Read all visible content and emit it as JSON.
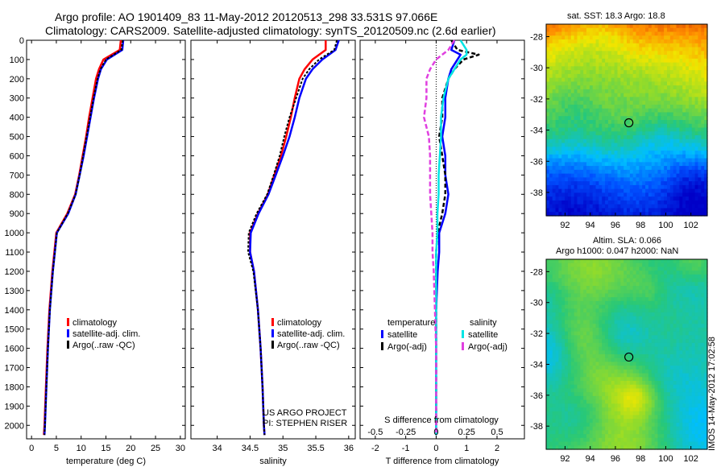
{
  "header": {
    "line1": "Argo profile: AO 1901409_83 11-May-2012 20120513_298 33.531S 97.066E",
    "line2": "Climatology: CARS2009. Satellite-adjusted climatology: synTS_20120509.nc (2.6d earlier)"
  },
  "project": {
    "line1": "US ARGO PROJECT",
    "line2": "PI: STEPHEN RISER"
  },
  "footer_stamp": "IMOS 14-May-2012 17:02:58",
  "colors": {
    "climatology": "#ff0000",
    "satellite": "#0000ff",
    "argo": "#000000",
    "sat_salinity": "#00e5e5",
    "argo_salinity": "#e040e0"
  },
  "chart_data": [
    {
      "type": "line",
      "id": "temperature",
      "xlabel": "temperature (deg C)",
      "xlim": [
        -1,
        31
      ],
      "xticks": [
        0,
        5,
        10,
        15,
        20,
        25,
        30
      ],
      "ylim": [
        2070,
        0
      ],
      "yticks": [
        0,
        100,
        200,
        300,
        400,
        500,
        600,
        700,
        800,
        900,
        1000,
        1100,
        1200,
        1300,
        1400,
        1500,
        1600,
        1700,
        1800,
        1900,
        2000
      ],
      "legend": [
        "climatology",
        "satellite-adj. clim.",
        "Argo(..raw -QC)"
      ],
      "depth": [
        0,
        50,
        100,
        150,
        200,
        300,
        400,
        500,
        600,
        700,
        800,
        900,
        1000,
        1200,
        1400,
        1600,
        1800,
        2000,
        2050
      ],
      "series": [
        {
          "name": "climatology",
          "values": [
            18.0,
            17.8,
            14.5,
            13.6,
            13.0,
            12.3,
            11.6,
            11.0,
            10.3,
            9.6,
            8.8,
            7.2,
            5.0,
            4.2,
            3.6,
            3.2,
            2.9,
            2.6,
            2.5
          ]
        },
        {
          "name": "satellite-adj. clim.",
          "values": [
            18.5,
            18.3,
            15.2,
            14.0,
            13.4,
            12.6,
            11.9,
            11.2,
            10.5,
            9.7,
            8.9,
            7.4,
            5.1,
            4.3,
            3.7,
            3.3,
            3.0,
            2.7,
            2.6
          ]
        },
        {
          "name": "Argo(..raw -QC)",
          "values": [
            18.4,
            18.1,
            15.0,
            13.9,
            13.3,
            12.5,
            11.8,
            11.1,
            10.4,
            9.7,
            8.9,
            7.3,
            5.1,
            4.3,
            3.7,
            3.3,
            3.0,
            2.7,
            2.6
          ]
        }
      ]
    },
    {
      "type": "line",
      "id": "salinity",
      "xlabel": "salinity",
      "xlim": [
        33.6,
        36.1
      ],
      "xticks": [
        34,
        34.5,
        35,
        35.5,
        36
      ],
      "ylim": [
        2070,
        0
      ],
      "legend": [
        "climatology",
        "satellite-adj. clim.",
        "Argo(..raw -QC)"
      ],
      "depth": [
        0,
        50,
        100,
        150,
        200,
        300,
        400,
        500,
        600,
        700,
        800,
        900,
        1000,
        1100,
        1200,
        1400,
        1600,
        1800,
        2000,
        2050
      ],
      "series": [
        {
          "name": "climatology",
          "values": [
            35.65,
            35.65,
            35.45,
            35.33,
            35.25,
            35.18,
            35.12,
            35.05,
            34.97,
            34.87,
            34.77,
            34.62,
            34.5,
            34.5,
            34.56,
            34.62,
            34.66,
            34.69,
            34.71,
            34.72
          ]
        },
        {
          "name": "satellite-adj. clim.",
          "values": [
            35.85,
            35.8,
            35.6,
            35.45,
            35.35,
            35.25,
            35.18,
            35.1,
            35.0,
            34.89,
            34.78,
            34.63,
            34.51,
            34.5,
            34.56,
            34.62,
            34.66,
            34.69,
            34.71,
            34.72
          ]
        },
        {
          "name": "Argo(..raw -QC)",
          "values": [
            35.82,
            35.78,
            35.55,
            35.4,
            35.3,
            35.2,
            35.1,
            35.02,
            34.95,
            34.86,
            34.76,
            34.6,
            34.48,
            34.47,
            34.55,
            34.62,
            34.66,
            34.69,
            34.71,
            34.72
          ]
        }
      ]
    },
    {
      "type": "line",
      "id": "difference",
      "xlabel": "T difference from climatology",
      "xlabel_top": "S difference from climatology",
      "xlim": [
        -2.5,
        2.9
      ],
      "xticks": [
        -2,
        -1,
        0,
        1,
        2
      ],
      "sticks": [
        "-0.5",
        "-0.25",
        "0",
        "0.25",
        "0.5"
      ],
      "ylim": [
        2070,
        0
      ],
      "legend_groups": [
        "temperature",
        "salinity"
      ],
      "legend": [
        "satellite",
        "Argo(-adj)",
        "satellite",
        "Argo(-adj)"
      ],
      "depth": [
        0,
        50,
        75,
        100,
        150,
        200,
        300,
        400,
        500,
        600,
        700,
        800,
        900,
        1000,
        1100,
        1200,
        1400,
        1600,
        1800,
        2000,
        2050
      ],
      "series": [
        {
          "name": "T satellite",
          "values": [
            0.6,
            0.5,
            0.8,
            0.7,
            0.5,
            0.4,
            0.3,
            0.3,
            0.2,
            0.3,
            0.3,
            0.4,
            0.3,
            0.1,
            0.1,
            0.05,
            0.0,
            0.0,
            0.0,
            0.0,
            0.0
          ]
        },
        {
          "name": "T Argo(-adj)",
          "values": [
            0.5,
            0.7,
            1.4,
            0.9,
            0.6,
            0.4,
            0.2,
            0.2,
            0.1,
            0.2,
            0.3,
            0.3,
            0.2,
            0.05,
            0.0,
            0.0,
            0.0,
            0.0,
            0.0,
            0.0,
            0.0
          ]
        },
        {
          "name": "S satellite",
          "values": [
            0.2,
            0.25,
            0.25,
            0.2,
            0.15,
            0.1,
            0.06,
            0.04,
            0.04,
            0.03,
            0.02,
            0.02,
            0.01,
            0.01,
            0.0,
            0.0,
            0.0,
            0.0,
            0.0,
            0.0,
            0.0
          ]
        },
        {
          "name": "S Argo(-adj)",
          "values": [
            0.15,
            0.1,
            0.05,
            0.0,
            -0.05,
            -0.08,
            -0.08,
            -0.1,
            -0.06,
            -0.05,
            -0.05,
            -0.05,
            -0.04,
            -0.03,
            -0.03,
            -0.02,
            -0.01,
            0.0,
            0.0,
            0.0,
            0.0
          ]
        }
      ]
    },
    {
      "type": "heatmap",
      "id": "sst_map",
      "title": "sat. SST: 18.3 Argo: 18.8",
      "xticks": [
        92,
        94,
        96,
        98,
        100,
        102
      ],
      "yticks": [
        -28,
        -30,
        -32,
        -34,
        -36,
        -38
      ],
      "xlim": [
        90.5,
        103.3
      ],
      "ylim": [
        -39.5,
        -27.2
      ],
      "marker": [
        97.07,
        -33.53
      ]
    },
    {
      "type": "heatmap",
      "id": "sla_map",
      "title": "Altim. SLA: 0.066",
      "subtitle": "Argo h1000: 0.047 h2000: NaN",
      "xticks": [
        92,
        94,
        96,
        98,
        100,
        102
      ],
      "yticks": [
        -28,
        -30,
        -32,
        -34,
        -36,
        -38
      ],
      "xlim": [
        90.5,
        103.3
      ],
      "ylim": [
        -39.5,
        -27.2
      ],
      "marker": [
        97.07,
        -33.53
      ]
    }
  ]
}
